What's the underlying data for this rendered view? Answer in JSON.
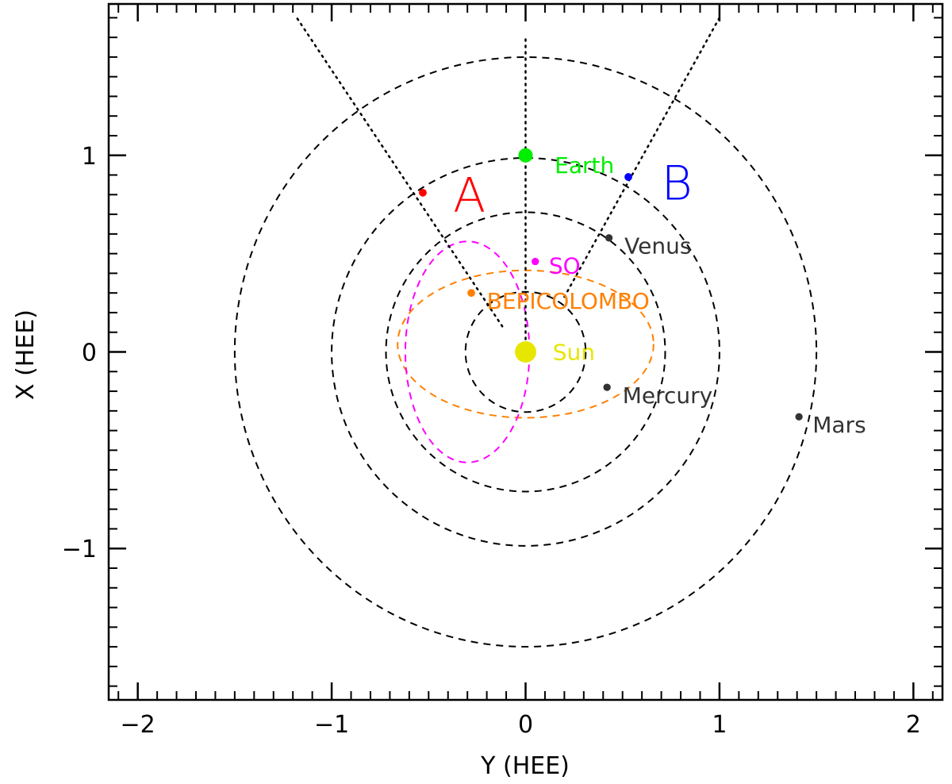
{
  "chart_data": {
    "type": "scatter",
    "xlabel": "Y (HEE)",
    "ylabel": "X (HEE)",
    "xlim": [
      -2.15,
      2.15
    ],
    "ylim": [
      1.77,
      -1.77
    ],
    "xticks": [
      {
        "value": -2,
        "label": "−2"
      },
      {
        "value": -1,
        "label": "−1"
      },
      {
        "value": 0,
        "label": "0"
      },
      {
        "value": 1,
        "label": "1"
      },
      {
        "value": 2,
        "label": "2"
      }
    ],
    "yticks": [
      {
        "value": -1,
        "label": "−1"
      },
      {
        "value": 0,
        "label": "0"
      },
      {
        "value": 1,
        "label": "1"
      }
    ],
    "minor_tick_step": 0.1,
    "orbits": [
      {
        "name": "mercury-orbit",
        "cx": 0,
        "cy": 0,
        "rx": 0.31,
        "ry": 0.31,
        "color": "#000000"
      },
      {
        "name": "venus-orbit",
        "cx": 0,
        "cy": 0,
        "rx": 0.72,
        "ry": 0.72,
        "color": "#000000"
      },
      {
        "name": "earth-orbit",
        "cx": 0,
        "cy": 0,
        "rx": 1.0,
        "ry": 1.0,
        "color": "#000000"
      },
      {
        "name": "mars-orbit",
        "cx": 0,
        "cy": 0,
        "rx": 1.5,
        "ry": 1.52,
        "color": "#000000"
      },
      {
        "name": "bepicolombo-orbit",
        "cx": 0,
        "cy": 0.04,
        "rx": 0.66,
        "ry": 0.38,
        "color": "#ff8000"
      },
      {
        "name": "so-orbit",
        "cx": -0.3,
        "cy": 0.0,
        "rx": 0.32,
        "ry": 0.57,
        "color": "#ff00ff"
      }
    ],
    "points": [
      {
        "name": "sun-marker",
        "label": "Sun",
        "x": 0.0,
        "y": 0.0,
        "r": 0.055,
        "color": "#e6e600",
        "label_color": "#e6e600",
        "label_dx": 0.14,
        "label_dy": 0.0
      },
      {
        "name": "mercury-marker",
        "label": "Mercury",
        "x": 0.42,
        "y": -0.18,
        "r": 0.019,
        "color": "#333333",
        "label_color": "#333333",
        "label_dx": 0.08,
        "label_dy": -0.04
      },
      {
        "name": "venus-marker",
        "label": "Venus",
        "x": 0.43,
        "y": 0.58,
        "r": 0.019,
        "color": "#333333",
        "label_color": "#333333",
        "label_dx": 0.08,
        "label_dy": -0.04
      },
      {
        "name": "earth-marker",
        "label": "Earth",
        "x": 0.0,
        "y": 1.0,
        "r": 0.037,
        "color": "#00ee00",
        "label_color": "#00ee00",
        "label_dx": 0.15,
        "label_dy": -0.05
      },
      {
        "name": "mars-marker",
        "label": "Mars",
        "x": 1.41,
        "y": -0.33,
        "r": 0.019,
        "color": "#333333",
        "label_color": "#333333",
        "label_dx": 0.07,
        "label_dy": -0.04
      },
      {
        "name": "bepicolombo-marker",
        "label": "BEPICOLOMBO",
        "x": -0.28,
        "y": 0.3,
        "r": 0.02,
        "color": "#ff8000",
        "label_color": "#ff8000",
        "label_dx": 0.08,
        "label_dy": -0.04
      },
      {
        "name": "so-marker",
        "label": "SO",
        "x": 0.05,
        "y": 0.46,
        "r": 0.019,
        "color": "#ff00ff",
        "label_color": "#ff00ff",
        "label_dx": 0.07,
        "label_dy": -0.02
      },
      {
        "name": "stereo-a-marker",
        "label": "",
        "x": -0.53,
        "y": 0.81,
        "r": 0.02,
        "color": "#ff0000",
        "label_color": "#ff0000",
        "label_dx": 0,
        "label_dy": 0
      },
      {
        "name": "stereo-b-marker",
        "label": "",
        "x": 0.53,
        "y": 0.89,
        "r": 0.02,
        "color": "#0000ff",
        "label_color": "#0000ff",
        "label_dx": 0,
        "label_dy": 0
      }
    ],
    "letters": [
      {
        "name": "label-a",
        "text": "A",
        "x": -0.29,
        "y": 0.8,
        "color": "#ff0000"
      },
      {
        "name": "label-b",
        "text": "B",
        "x": 0.78,
        "y": 0.86,
        "color": "#0000ff"
      }
    ],
    "sight_lines": [
      {
        "name": "earth-sight-line",
        "from": [
          0,
          0
        ],
        "to": [
          0,
          1.6
        ]
      },
      {
        "name": "stereo-a-sight-line",
        "from": [
          -0.12,
          0.13
        ],
        "to": [
          -1.18,
          1.7
        ]
      },
      {
        "name": "stereo-b-sight-line",
        "from": [
          0.2,
          0.28
        ],
        "to": [
          1.0,
          1.7
        ]
      }
    ]
  }
}
